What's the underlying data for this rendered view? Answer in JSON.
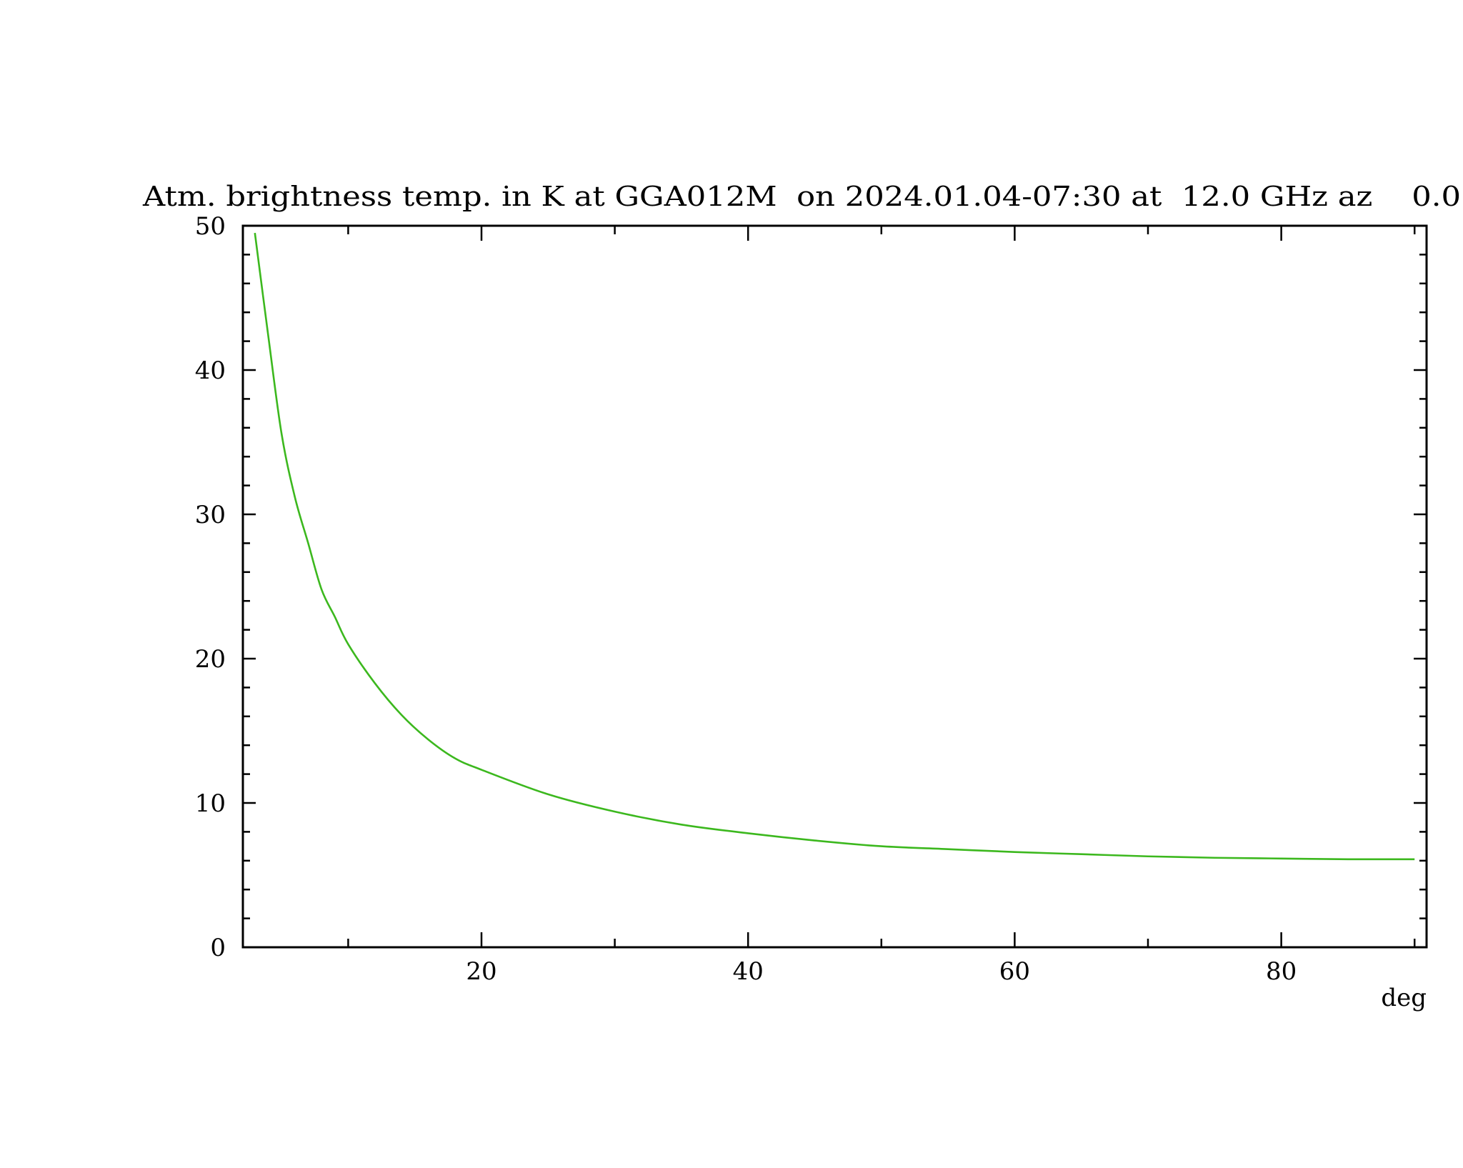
{
  "chart_data": {
    "type": "line",
    "title": "Atm. brightness temp. in K at GGA012M  on 2024.01.04-07:30 at  12.0 GHz az    0.0",
    "xlabel": "deg",
    "ylabel": "",
    "xlim": [
      2.1,
      90.9
    ],
    "ylim": [
      0,
      50
    ],
    "x_ticks": [
      20,
      40,
      60,
      80
    ],
    "x_minor_step": 10,
    "y_ticks": [
      0,
      10,
      20,
      30,
      40,
      50
    ],
    "y_minor_step": 2,
    "grid": false,
    "series": [
      {
        "color": "#3cb81e",
        "x": [
          3,
          4,
          5,
          6,
          7,
          8,
          9,
          10,
          12,
          14,
          16,
          18,
          20,
          25,
          30,
          35,
          40,
          45,
          50,
          55,
          60,
          65,
          70,
          75,
          80,
          85,
          90
        ],
        "y": [
          49.5,
          42.4,
          35.6,
          31.2,
          28.0,
          24.8,
          22.9,
          21.0,
          18.3,
          16.1,
          14.4,
          13.1,
          12.3,
          10.6,
          9.4,
          8.5,
          7.9,
          7.4,
          7.0,
          6.8,
          6.6,
          6.45,
          6.3,
          6.2,
          6.15,
          6.1,
          6.1
        ]
      }
    ]
  }
}
